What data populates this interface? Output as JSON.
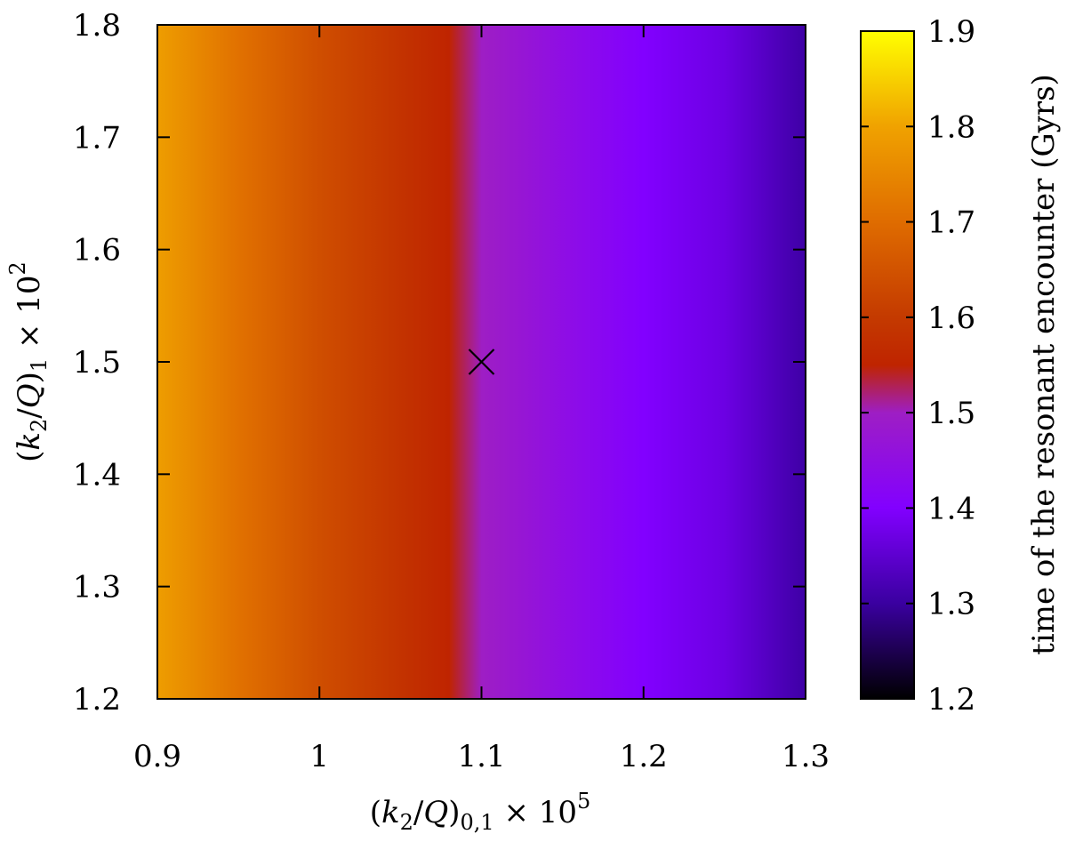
{
  "chart_data": {
    "type": "heatmap",
    "title": "",
    "xlabel": {
      "text": "(k2/Q)0,1 × 10^5",
      "parts": [
        "(",
        "k",
        "2",
        "/",
        "Q",
        ")",
        "0,1",
        " × 10",
        "5"
      ]
    },
    "ylabel": {
      "text": "(k2/Q)1 × 10^2",
      "parts": [
        "(",
        "k",
        "2",
        "/",
        "Q",
        ")",
        "1",
        " × 10",
        "2"
      ]
    },
    "xlim": [
      0.9,
      1.3
    ],
    "ylim": [
      1.2,
      1.8
    ],
    "x_ticks": [
      "0.9",
      "1",
      "1.1",
      "1.2",
      "1.3"
    ],
    "y_ticks": [
      "1.2",
      "1.3",
      "1.4",
      "1.5",
      "1.6",
      "1.7",
      "1.8"
    ],
    "colorbar": {
      "label": "time of the resonant encounter (Gyrs)",
      "range": [
        1.2,
        1.9
      ],
      "ticks": [
        "1.2",
        "1.3",
        "1.4",
        "1.5",
        "1.6",
        "1.7",
        "1.8",
        "1.9"
      ],
      "colormap": [
        {
          "value": 1.2,
          "color": "#000000"
        },
        {
          "value": 1.3,
          "color": "#3a00a0"
        },
        {
          "value": 1.4,
          "color": "#8200ff"
        },
        {
          "value": 1.5,
          "color": "#9e1ec4"
        },
        {
          "value": 1.55,
          "color": "#bf2400"
        },
        {
          "value": 1.6,
          "color": "#c43a00"
        },
        {
          "value": 1.7,
          "color": "#df6c00"
        },
        {
          "value": 1.8,
          "color": "#f0a200"
        },
        {
          "value": 1.9,
          "color": "#ffff00"
        }
      ]
    },
    "note": "time varies along x only; roughly constant in y",
    "x_profile": [
      {
        "x": 0.9,
        "t": 1.79
      },
      {
        "x": 0.95,
        "t": 1.71
      },
      {
        "x": 1.0,
        "t": 1.64
      },
      {
        "x": 1.05,
        "t": 1.585
      },
      {
        "x": 1.08,
        "t": 1.55
      },
      {
        "x": 1.1,
        "t": 1.5
      },
      {
        "x": 1.15,
        "t": 1.445
      },
      {
        "x": 1.2,
        "t": 1.4
      },
      {
        "x": 1.25,
        "t": 1.37
      },
      {
        "x": 1.3,
        "t": 1.305
      }
    ],
    "marker": {
      "x": 1.1,
      "y": 1.5,
      "symbol": "×"
    },
    "grid": false
  }
}
